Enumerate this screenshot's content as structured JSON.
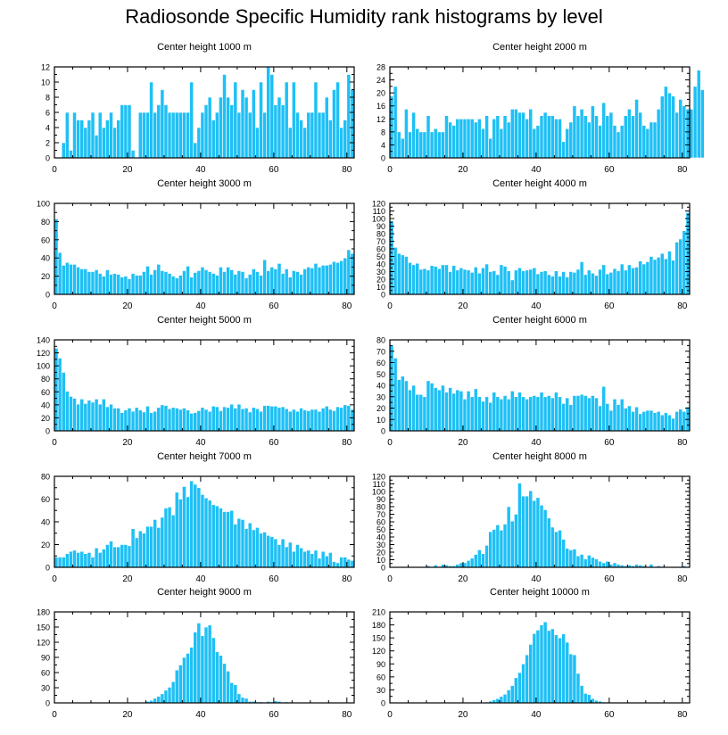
{
  "title": "Radiosonde Specific Humidity rank histograms by level",
  "colors": {
    "bar": "#1ec0f5",
    "bar_edge": "#ffffff",
    "axis": "#000000"
  },
  "chart_data": [
    {
      "type": "bar",
      "title": "Center height 1000 m",
      "xlim": [
        0,
        82
      ],
      "ylim": [
        0,
        12
      ],
      "xticks": [
        0,
        20,
        40,
        60,
        80
      ],
      "yticks": [
        0,
        2,
        4,
        6,
        8,
        10,
        12
      ],
      "values": [
        0,
        0,
        2,
        6,
        1,
        6,
        5,
        5,
        4,
        5,
        6,
        3,
        6,
        4,
        5,
        6,
        4,
        5,
        7,
        7,
        7,
        1,
        0,
        6,
        6,
        6,
        10,
        6,
        7,
        9,
        7,
        6,
        6,
        6,
        6,
        6,
        6,
        10,
        2,
        4,
        6,
        7,
        8,
        5,
        6,
        8,
        11,
        8,
        7,
        10,
        6,
        9,
        8,
        6,
        9,
        4,
        10,
        6,
        12,
        11,
        7,
        8,
        7,
        10,
        4,
        10,
        6,
        5,
        4,
        6,
        6,
        10,
        6,
        6,
        8,
        5,
        9,
        10,
        4,
        5,
        11,
        9
      ],
      "xlabel": "",
      "ylabel": ""
    },
    {
      "type": "bar",
      "title": "Center height 2000 m",
      "xlim": [
        0,
        82
      ],
      "ylim": [
        0,
        28
      ],
      "xticks": [
        0,
        20,
        40,
        60,
        80
      ],
      "yticks": [
        0,
        4,
        8,
        12,
        16,
        20,
        24,
        28
      ],
      "values": [
        19,
        22,
        8,
        6,
        15,
        8,
        14,
        9,
        8,
        8,
        13,
        8,
        9,
        8,
        8,
        13,
        11,
        10,
        12,
        12,
        12,
        12,
        12,
        11,
        12,
        9,
        13,
        6,
        12,
        13,
        9,
        13,
        11,
        15,
        15,
        14,
        14,
        12,
        15,
        9,
        10,
        13,
        14,
        13,
        13,
        12,
        12,
        5,
        9,
        11,
        16,
        13,
        15,
        13,
        11,
        16,
        13,
        10,
        17,
        13,
        14,
        10,
        8,
        10,
        13,
        15,
        13,
        18,
        14,
        10,
        9,
        11,
        11,
        15,
        19,
        22,
        20,
        19,
        14,
        18,
        16,
        15,
        15,
        22,
        27,
        21
      ],
      "xlabel": "",
      "ylabel": ""
    },
    {
      "type": "bar",
      "title": "Center height 3000 m",
      "xlim": [
        0,
        82
      ],
      "ylim": [
        0,
        100
      ],
      "xticks": [
        0,
        20,
        40,
        60,
        80
      ],
      "yticks": [
        0,
        20,
        40,
        60,
        80,
        100
      ],
      "values": [
        83,
        46,
        32,
        35,
        33,
        33,
        30,
        28,
        28,
        25,
        25,
        27,
        23,
        20,
        27,
        22,
        23,
        22,
        19,
        20,
        17,
        23,
        21,
        21,
        25,
        31,
        22,
        27,
        33,
        26,
        25,
        23,
        20,
        18,
        21,
        26,
        31,
        19,
        24,
        26,
        30,
        27,
        25,
        23,
        21,
        30,
        25,
        30,
        27,
        22,
        26,
        25,
        18,
        22,
        28,
        25,
        21,
        38,
        26,
        30,
        28,
        34,
        23,
        28,
        19,
        26,
        25,
        22,
        28,
        30,
        29,
        34,
        30,
        32,
        32,
        33,
        36,
        35,
        37,
        40,
        49,
        45
      ],
      "xlabel": "",
      "ylabel": ""
    },
    {
      "type": "bar",
      "title": "Center height 4000 m",
      "xlim": [
        0,
        82
      ],
      "ylim": [
        0,
        120
      ],
      "xticks": [
        0,
        20,
        40,
        60,
        80
      ],
      "yticks": [
        0,
        10,
        20,
        30,
        40,
        50,
        60,
        70,
        80,
        90,
        100,
        110,
        120
      ],
      "values": [
        97,
        62,
        54,
        52,
        50,
        42,
        39,
        41,
        33,
        34,
        32,
        38,
        37,
        34,
        39,
        39,
        30,
        38,
        32,
        35,
        33,
        32,
        29,
        36,
        28,
        35,
        40,
        30,
        31,
        26,
        39,
        37,
        31,
        19,
        32,
        35,
        31,
        32,
        33,
        35,
        27,
        30,
        31,
        26,
        24,
        31,
        24,
        30,
        23,
        30,
        29,
        33,
        43,
        26,
        32,
        28,
        25,
        33,
        39,
        27,
        29,
        34,
        31,
        40,
        32,
        39,
        35,
        36,
        44,
        40,
        43,
        50,
        46,
        49,
        54,
        47,
        57,
        45,
        69,
        73,
        84,
        108
      ],
      "xlabel": "",
      "ylabel": ""
    },
    {
      "type": "bar",
      "title": "Center height 5000 m",
      "xlim": [
        0,
        82
      ],
      "ylim": [
        0,
        140
      ],
      "xticks": [
        0,
        20,
        40,
        60,
        80
      ],
      "yticks": [
        0,
        20,
        40,
        60,
        80,
        100,
        120,
        140
      ],
      "values": [
        127,
        112,
        90,
        61,
        53,
        50,
        41,
        49,
        42,
        47,
        44,
        49,
        41,
        49,
        37,
        41,
        35,
        35,
        28,
        32,
        35,
        30,
        36,
        32,
        29,
        38,
        28,
        30,
        36,
        40,
        39,
        34,
        36,
        35,
        33,
        35,
        32,
        27,
        28,
        31,
        36,
        33,
        30,
        38,
        37,
        31,
        37,
        36,
        41,
        35,
        41,
        34,
        35,
        29,
        36,
        34,
        30,
        39,
        39,
        38,
        38,
        36,
        37,
        34,
        30,
        33,
        30,
        35,
        32,
        31,
        33,
        33,
        30,
        35,
        38,
        33,
        31,
        37,
        36,
        40,
        39,
        33
      ],
      "xlabel": "",
      "ylabel": ""
    },
    {
      "type": "bar",
      "title": "Center height 6000 m",
      "xlim": [
        0,
        82
      ],
      "ylim": [
        0,
        80
      ],
      "xticks": [
        0,
        20,
        40,
        60,
        80
      ],
      "yticks": [
        0,
        10,
        20,
        30,
        40,
        50,
        60,
        70,
        80
      ],
      "values": [
        75,
        64,
        45,
        48,
        44,
        36,
        40,
        32,
        32,
        30,
        44,
        42,
        38,
        36,
        40,
        34,
        38,
        33,
        36,
        35,
        28,
        35,
        30,
        37,
        30,
        26,
        30,
        25,
        34,
        30,
        28,
        31,
        28,
        35,
        30,
        34,
        30,
        28,
        30,
        31,
        30,
        34,
        30,
        31,
        29,
        34,
        30,
        24,
        29,
        23,
        31,
        31,
        32,
        31,
        29,
        31,
        29,
        22,
        39,
        24,
        18,
        28,
        23,
        28,
        20,
        22,
        17,
        21,
        15,
        17,
        18,
        18,
        16,
        17,
        14,
        16,
        14,
        11,
        17,
        19,
        17,
        21
      ],
      "xlabel": "",
      "ylabel": ""
    },
    {
      "type": "bar",
      "title": "Center height 7000 m",
      "xlim": [
        0,
        82
      ],
      "ylim": [
        0,
        80
      ],
      "xticks": [
        0,
        20,
        40,
        60,
        80
      ],
      "yticks": [
        0,
        20,
        40,
        60,
        80
      ],
      "values": [
        9,
        9,
        9,
        12,
        14,
        15,
        13,
        14,
        12,
        13,
        9,
        17,
        13,
        16,
        20,
        23,
        18,
        18,
        20,
        20,
        19,
        34,
        26,
        32,
        30,
        36,
        36,
        42,
        35,
        44,
        52,
        53,
        46,
        66,
        60,
        71,
        62,
        76,
        73,
        70,
        64,
        61,
        59,
        55,
        54,
        52,
        49,
        49,
        50,
        38,
        43,
        42,
        34,
        39,
        33,
        35,
        30,
        31,
        28,
        27,
        25,
        20,
        25,
        18,
        22,
        14,
        20,
        17,
        14,
        15,
        12,
        15,
        8,
        14,
        10,
        13,
        5,
        4,
        9,
        9,
        7,
        6
      ],
      "xlabel": "",
      "ylabel": ""
    },
    {
      "type": "bar",
      "title": "Center height 8000 m",
      "xlim": [
        0,
        82
      ],
      "ylim": [
        0,
        120
      ],
      "xticks": [
        0,
        20,
        40,
        60,
        80
      ],
      "yticks": [
        0,
        10,
        20,
        30,
        40,
        50,
        60,
        70,
        80,
        90,
        100,
        110,
        120
      ],
      "values": [
        0,
        0,
        0,
        0,
        0,
        0,
        0,
        1,
        0,
        0,
        2,
        1,
        3,
        1,
        4,
        3,
        2,
        2,
        4,
        6,
        6,
        9,
        12,
        17,
        23,
        18,
        29,
        47,
        50,
        56,
        49,
        57,
        80,
        61,
        70,
        111,
        94,
        94,
        101,
        88,
        92,
        82,
        76,
        65,
        53,
        47,
        49,
        37,
        25,
        23,
        24,
        15,
        17,
        11,
        16,
        13,
        11,
        8,
        6,
        8,
        4,
        6,
        4,
        3,
        2,
        3,
        2,
        4,
        3,
        2,
        1,
        4,
        1,
        2,
        1,
        0,
        0,
        1,
        0,
        0,
        2,
        1
      ],
      "xlabel": "",
      "ylabel": ""
    },
    {
      "type": "bar",
      "title": "Center height 9000 m",
      "xlim": [
        0,
        82
      ],
      "ylim": [
        0,
        180
      ],
      "xticks": [
        0,
        20,
        40,
        60,
        80
      ],
      "yticks": [
        0,
        30,
        60,
        90,
        120,
        150,
        180
      ],
      "values": [
        0,
        0,
        0,
        0,
        0,
        0,
        0,
        0,
        0,
        0,
        0,
        0,
        0,
        0,
        0,
        0,
        0,
        0,
        0,
        0,
        0,
        0,
        0,
        0,
        1,
        3,
        5,
        9,
        13,
        18,
        25,
        31,
        42,
        65,
        75,
        90,
        98,
        110,
        140,
        158,
        133,
        150,
        154,
        129,
        101,
        94,
        78,
        63,
        40,
        36,
        18,
        11,
        9,
        3,
        3,
        2,
        2,
        1,
        3,
        2,
        4,
        3,
        1,
        2,
        1,
        1,
        0,
        0,
        0,
        0,
        0,
        0,
        0,
        0,
        0,
        0,
        0,
        0,
        0,
        0,
        0,
        0
      ],
      "xlabel": "",
      "ylabel": ""
    },
    {
      "type": "bar",
      "title": "Center height 10000 m",
      "xlim": [
        0,
        82
      ],
      "ylim": [
        0,
        210
      ],
      "xticks": [
        0,
        20,
        40,
        60,
        80
      ],
      "yticks": [
        0,
        30,
        60,
        90,
        120,
        150,
        180,
        210
      ],
      "values": [
        0,
        0,
        0,
        0,
        0,
        0,
        0,
        0,
        0,
        0,
        0,
        0,
        0,
        0,
        0,
        0,
        0,
        0,
        0,
        0,
        0,
        0,
        0,
        0,
        0,
        1,
        2,
        4,
        7,
        10,
        15,
        20,
        30,
        40,
        58,
        70,
        90,
        111,
        135,
        160,
        168,
        180,
        187,
        167,
        171,
        157,
        150,
        159,
        140,
        113,
        111,
        68,
        40,
        22,
        19,
        10,
        6,
        4,
        2,
        2,
        1,
        1,
        1,
        0,
        0,
        0,
        0,
        0,
        0,
        0,
        0,
        0,
        0,
        0,
        0,
        0,
        0,
        0,
        0,
        0,
        0,
        0
      ],
      "xlabel": "",
      "ylabel": ""
    }
  ]
}
